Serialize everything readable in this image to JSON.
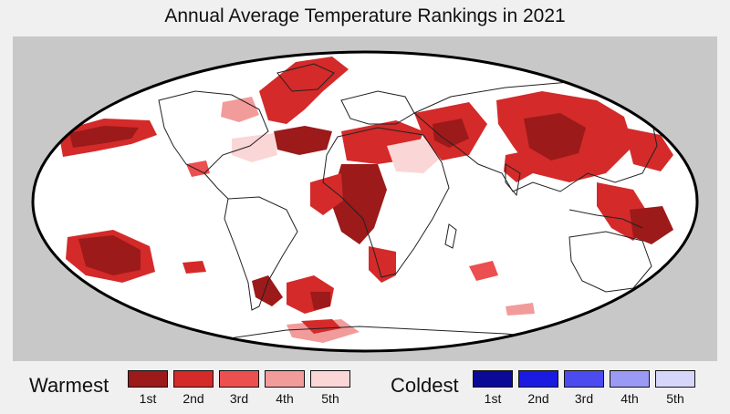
{
  "title": "Annual Average Temperature Rankings in 2021",
  "legend": {
    "warm_label": "Warmest",
    "cold_label": "Coldest",
    "warm": [
      {
        "rank": "1st",
        "color": "#9c1a1a"
      },
      {
        "rank": "2nd",
        "color": "#d42a2a"
      },
      {
        "rank": "3rd",
        "color": "#ec4f4f"
      },
      {
        "rank": "4th",
        "color": "#f29b9b"
      },
      {
        "rank": "5th",
        "color": "#fbd6d6"
      }
    ],
    "cold": [
      {
        "rank": "1st",
        "color": "#0a0a96"
      },
      {
        "rank": "2nd",
        "color": "#1a1ae0"
      },
      {
        "rank": "3rd",
        "color": "#4b4bf0"
      },
      {
        "rank": "4th",
        "color": "#9a9af5"
      },
      {
        "rank": "5th",
        "color": "#d6d6fb"
      }
    ]
  },
  "colors": {
    "background": "#c8c8c8",
    "ocean_land": "#ffffff",
    "coastline": "#222222"
  }
}
